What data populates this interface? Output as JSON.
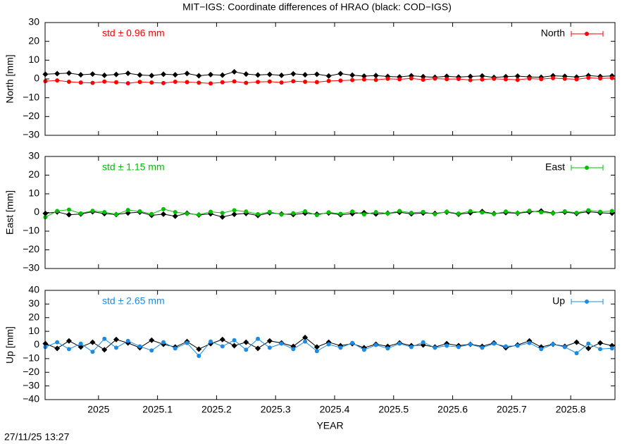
{
  "title": "MIT−IGS: Coordinate differences of HRAO (black: COD−IGS)",
  "timestamp": "27/11/25 13:27",
  "chart_data": [
    {
      "type": "line",
      "ylabel": "North [mm]",
      "annotation": "std ± 0.96 mm",
      "xlim": [
        2024.9095,
        2025.875
      ],
      "ylim": [
        -30,
        30
      ],
      "yticks": [
        {
          "value": -30,
          "label": "−30"
        },
        {
          "value": -20,
          "label": "−20"
        },
        {
          "value": -10,
          "label": "−10"
        },
        0,
        10,
        20,
        30
      ],
      "x": [
        2024.91,
        2024.93,
        2024.95,
        2024.97,
        2024.99,
        2025.01,
        2025.03,
        2025.05,
        2025.07,
        2025.09,
        2025.11,
        2025.13,
        2025.15,
        2025.17,
        2025.19,
        2025.21,
        2025.23,
        2025.25,
        2025.27,
        2025.29,
        2025.31,
        2025.33,
        2025.35,
        2025.37,
        2025.39,
        2025.41,
        2025.43,
        2025.45,
        2025.47,
        2025.49,
        2025.51,
        2025.53,
        2025.55,
        2025.57,
        2025.59,
        2025.61,
        2025.63,
        2025.65,
        2025.67,
        2025.69,
        2025.71,
        2025.73,
        2025.75,
        2025.77,
        2025.79,
        2025.81,
        2025.83,
        2025.85,
        2025.87
      ],
      "legend": "upper right",
      "series": [
        {
          "color": "#000000",
          "marker": "diamond",
          "values": [
            2.5,
            2.8,
            3.1,
            2.2,
            2.6,
            1.9,
            2.4,
            3.0,
            2.1,
            1.8,
            2.5,
            2.2,
            2.9,
            1.7,
            2.3,
            2.0,
            3.8,
            2.6,
            2.1,
            2.4,
            1.9,
            2.7,
            2.2,
            2.5,
            1.6,
            2.8,
            2.0,
            1.5,
            1.8,
            1.3,
            1.1,
            1.7,
            1.2,
            0.9,
            1.4,
            1.0,
            1.3,
            1.6,
            0.8,
            1.2,
            1.5,
            1.1,
            0.9,
            1.7,
            1.4,
            1.0,
            1.8,
            1.3,
            1.6
          ]
        },
        {
          "name": "North",
          "color": "#ff0000",
          "marker": "circle",
          "values": [
            -1.2,
            -0.8,
            -1.5,
            -1.9,
            -2.1,
            -1.4,
            -1.8,
            -2.3,
            -1.6,
            -1.9,
            -2.2,
            -1.5,
            -1.7,
            -2.0,
            -2.4,
            -1.8,
            -1.3,
            -2.1,
            -1.6,
            -1.4,
            -1.9,
            -1.2,
            -1.5,
            -1.7,
            -1.1,
            -0.9,
            -0.6,
            -0.3,
            -0.5,
            0.1,
            -0.2,
            0.3,
            -0.4,
            0.2,
            -0.1,
            0.0,
            -0.6,
            -0.3,
            0.1,
            -0.2,
            -0.5,
            0.2,
            -0.1,
            0.4,
            0.1,
            -0.2,
            0.6,
            0.3,
            0.5
          ]
        }
      ]
    },
    {
      "type": "line",
      "ylabel": "East [mm]",
      "annotation": "std ± 1.15 mm",
      "xlim": [
        2024.9095,
        2025.875
      ],
      "ylim": [
        -30,
        30
      ],
      "yticks": [
        {
          "value": -30,
          "label": "−30"
        },
        {
          "value": -20,
          "label": "−20"
        },
        {
          "value": -10,
          "label": "−10"
        },
        0,
        10,
        20,
        30
      ],
      "x": [
        2024.91,
        2024.93,
        2024.95,
        2024.97,
        2024.99,
        2025.01,
        2025.03,
        2025.05,
        2025.07,
        2025.09,
        2025.11,
        2025.13,
        2025.15,
        2025.17,
        2025.19,
        2025.21,
        2025.23,
        2025.25,
        2025.27,
        2025.29,
        2025.31,
        2025.33,
        2025.35,
        2025.37,
        2025.39,
        2025.41,
        2025.43,
        2025.45,
        2025.47,
        2025.49,
        2025.51,
        2025.53,
        2025.55,
        2025.57,
        2025.59,
        2025.61,
        2025.63,
        2025.65,
        2025.67,
        2025.69,
        2025.71,
        2025.73,
        2025.75,
        2025.77,
        2025.79,
        2025.81,
        2025.83,
        2025.85,
        2025.87
      ],
      "legend": "upper right",
      "series": [
        {
          "color": "#000000",
          "marker": "diamond",
          "values": [
            -0.5,
            0.3,
            -1.2,
            -0.8,
            0.4,
            -0.6,
            -1.1,
            -0.3,
            0.2,
            -1.5,
            -0.9,
            -2.0,
            -0.4,
            -1.3,
            -0.7,
            -2.4,
            -1.0,
            -0.5,
            -1.6,
            -0.2,
            -0.8,
            -1.1,
            -0.4,
            -0.9,
            -0.3,
            -1.2,
            -0.6,
            -0.1,
            -0.8,
            -0.4,
            0.1,
            -0.7,
            -0.3,
            -0.5,
            0.2,
            -0.9,
            -0.2,
            0.5,
            -0.6,
            -0.1,
            -0.4,
            0.3,
            0.8,
            -0.3,
            0.2,
            -0.5,
            0.4,
            -0.2,
            -0.4
          ]
        },
        {
          "name": "East",
          "color": "#00c000",
          "marker": "circle",
          "values": [
            -2.5,
            0.8,
            1.5,
            -0.5,
            0.9,
            0.2,
            -1.0,
            1.3,
            0.6,
            -0.8,
            1.8,
            0.2,
            -0.6,
            -1.2,
            0.4,
            -0.3,
            1.2,
            0.5,
            -0.9,
            0.3,
            -1.1,
            -0.4,
            0.6,
            -1.4,
            0.1,
            -0.7,
            0.5,
            -1.0,
            0.2,
            -0.5,
            0.8,
            -0.2,
            0.3,
            -0.9,
            0.4,
            -0.6,
            0.7,
            0.0,
            -0.8,
            0.5,
            -0.3,
            0.9,
            0.1,
            -0.4,
            0.6,
            -0.2,
            1.2,
            0.4,
            0.8
          ]
        }
      ]
    },
    {
      "type": "line",
      "ylabel": "Up [mm]",
      "annotation": "std ± 2.65 mm",
      "xlabel": "YEAR",
      "xlim": [
        2024.9095,
        2025.875
      ],
      "ylim": [
        -40,
        40
      ],
      "xticks": [
        2025,
        2025.1,
        2025.2,
        2025.3,
        2025.4,
        2025.5,
        2025.6,
        2025.7,
        2025.8
      ],
      "yticks": [
        {
          "value": -40,
          "label": "−40"
        },
        {
          "value": -30,
          "label": "−30"
        },
        {
          "value": -20,
          "label": "−20"
        },
        {
          "value": -10,
          "label": "−10"
        },
        0,
        10,
        20,
        30,
        40
      ],
      "x": [
        2024.91,
        2024.93,
        2024.95,
        2024.97,
        2024.99,
        2025.01,
        2025.03,
        2025.05,
        2025.07,
        2025.09,
        2025.11,
        2025.13,
        2025.15,
        2025.17,
        2025.19,
        2025.21,
        2025.23,
        2025.25,
        2025.27,
        2025.29,
        2025.31,
        2025.33,
        2025.35,
        2025.37,
        2025.39,
        2025.41,
        2025.43,
        2025.45,
        2025.47,
        2025.49,
        2025.51,
        2025.53,
        2025.55,
        2025.57,
        2025.59,
        2025.61,
        2025.63,
        2025.65,
        2025.67,
        2025.69,
        2025.71,
        2025.73,
        2025.75,
        2025.77,
        2025.79,
        2025.81,
        2025.83,
        2025.85,
        2025.87
      ],
      "legend": "upper right",
      "series": [
        {
          "color": "#000000",
          "marker": "diamond",
          "values": [
            1.0,
            -2.5,
            3.0,
            -1.5,
            2.0,
            -3.5,
            4.0,
            1.5,
            -2.0,
            3.5,
            0.5,
            -1.5,
            2.5,
            -3.0,
            1.0,
            4.0,
            -0.5,
            2.0,
            -2.5,
            3.0,
            1.5,
            -1.0,
            5.5,
            -1.5,
            2.0,
            -0.5,
            1.0,
            -2.0,
            0.5,
            -1.0,
            1.5,
            -0.5,
            0.0,
            -1.5,
            1.0,
            -0.5,
            0.5,
            -1.0,
            1.5,
            -2.0,
            0.0,
            3.0,
            -1.5,
            0.5,
            -1.0,
            2.0,
            -2.5,
            1.5,
            -0.5
          ]
        },
        {
          "name": "Up",
          "color": "#1a8ce6",
          "marker": "circle",
          "values": [
            -1.5,
            2.0,
            -3.0,
            1.0,
            -5.0,
            4.5,
            -2.0,
            3.0,
            -1.0,
            -4.0,
            2.0,
            -2.5,
            1.5,
            -8.0,
            2.5,
            -1.0,
            3.5,
            -3.5,
            4.5,
            -2.0,
            1.0,
            -3.0,
            2.5,
            -4.5,
            0.5,
            -2.0,
            1.5,
            -3.5,
            0.0,
            -2.5,
            1.0,
            -1.5,
            2.0,
            -2.0,
            -0.5,
            -1.5,
            0.5,
            -2.0,
            1.0,
            -1.0,
            -0.5,
            1.5,
            -3.0,
            0.5,
            -1.5,
            -6.0,
            1.0,
            -3.0,
            -2.5
          ]
        }
      ]
    }
  ]
}
